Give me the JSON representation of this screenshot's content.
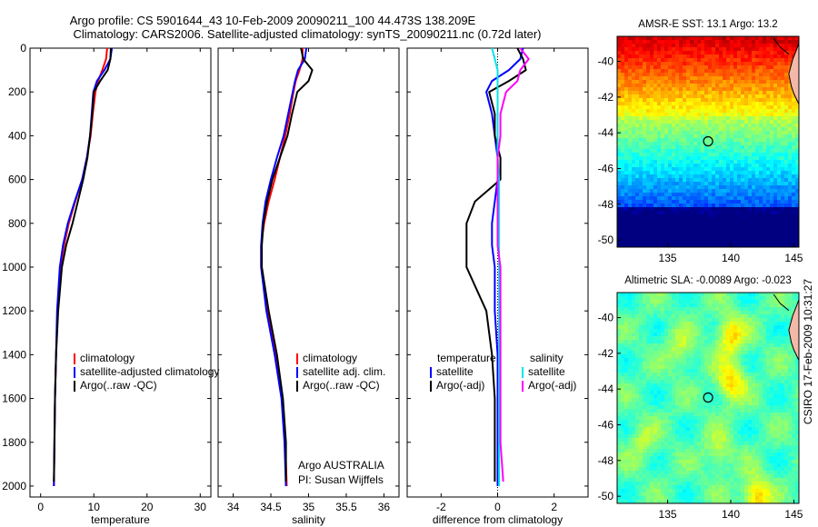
{
  "title": {
    "line1": "Argo profile: CS 5901644_43 10-Feb-2009 20090211_100 44.473S 138.209E",
    "line2": "Climatology: CARS2006. Satellite-adjusted climatology: synTS_20090211.nc (0.72d later)"
  },
  "side_label": "CSIRO 17-Feb-2009 10:31:27",
  "colors": {
    "climatology": "#ff0000",
    "satellite": "#0000ff",
    "argo": "#000000",
    "satellite_sal_diff": "#00e5ee",
    "argo_sal_diff": "#ff00ff",
    "land": "#f4b8a8",
    "frame": "#000000"
  },
  "chart_data": [
    {
      "type": "line",
      "xlabel": "temperature",
      "xlim": [
        -2,
        32
      ],
      "xticks": [
        0,
        10,
        20,
        30
      ],
      "ylim": [
        2050,
        0
      ],
      "yticks": [
        0,
        200,
        400,
        600,
        800,
        1000,
        1200,
        1400,
        1600,
        1800,
        2000
      ],
      "legend": {
        "placement": "lower-middle",
        "entries": [
          "climatology",
          "satellite-adjusted climatology",
          "Argo(..raw -QC)"
        ]
      },
      "series": [
        {
          "name": "climatology",
          "color": "#ff0000",
          "x": [
            12.5,
            12.3,
            11.6,
            10.8,
            10.3,
            9.8,
            9.4,
            8.7,
            7.8,
            6.5,
            5.3,
            4.4,
            3.7,
            3.2,
            2.9,
            2.7,
            2.6,
            2.5
          ],
          "y": [
            0,
            50,
            100,
            150,
            200,
            300,
            400,
            500,
            600,
            700,
            800,
            900,
            1000,
            1200,
            1400,
            1600,
            1800,
            2000
          ]
        },
        {
          "name": "satellite-adjusted climatology",
          "color": "#0000ff",
          "x": [
            13.4,
            13.1,
            12.0,
            10.6,
            9.9,
            9.6,
            9.3,
            8.7,
            7.8,
            6.4,
            5.1,
            4.2,
            3.6,
            3.1,
            2.9,
            2.7,
            2.6,
            2.5
          ],
          "y": [
            0,
            50,
            100,
            150,
            200,
            300,
            400,
            500,
            600,
            700,
            800,
            900,
            1000,
            1200,
            1400,
            1600,
            1800,
            2000
          ]
        },
        {
          "name": "Argo(..raw -QC)",
          "color": "#000000",
          "x": [
            13.2,
            13.1,
            12.6,
            11.2,
            10.0,
            9.7,
            9.3,
            8.8,
            8.0,
            7.0,
            6.0,
            4.8,
            4.0,
            3.3,
            2.9,
            2.7,
            2.6,
            2.5
          ],
          "y": [
            0,
            50,
            100,
            150,
            200,
            300,
            400,
            500,
            600,
            700,
            800,
            900,
            1000,
            1200,
            1400,
            1600,
            1800,
            1980
          ]
        }
      ]
    },
    {
      "type": "line",
      "xlabel": "salinity",
      "xlim": [
        33.8,
        36.2
      ],
      "xticks": [
        34,
        34.5,
        35,
        35.5,
        36
      ],
      "ylim": [
        2050,
        0
      ],
      "yticks": [
        0,
        200,
        400,
        600,
        800,
        1000,
        1200,
        1400,
        1600,
        1800,
        2000
      ],
      "annotation": [
        "Argo AUSTRALIA",
        "PI: Susan Wijffels"
      ],
      "legend": {
        "placement": "lower-middle",
        "entries": [
          "climatology",
          "satellite adj. clim.",
          "Argo(..raw -QC)"
        ]
      },
      "series": [
        {
          "name": "climatology",
          "color": "#ff0000",
          "x": [
            34.92,
            34.92,
            34.88,
            34.83,
            34.8,
            34.75,
            34.69,
            34.62,
            34.55,
            34.47,
            34.41,
            34.37,
            34.37,
            34.45,
            34.56,
            34.65,
            34.69,
            34.71
          ],
          "y": [
            0,
            50,
            100,
            150,
            200,
            300,
            400,
            500,
            600,
            700,
            800,
            900,
            1000,
            1200,
            1400,
            1600,
            1800,
            2000
          ]
        },
        {
          "name": "satellite adj. clim.",
          "color": "#0000ff",
          "x": [
            34.97,
            34.95,
            34.86,
            34.82,
            34.79,
            34.73,
            34.67,
            34.58,
            34.5,
            34.43,
            34.39,
            34.37,
            34.37,
            34.44,
            34.55,
            34.64,
            34.68,
            34.7
          ],
          "y": [
            0,
            50,
            100,
            150,
            200,
            300,
            400,
            500,
            600,
            700,
            800,
            900,
            1000,
            1200,
            1400,
            1600,
            1800,
            2000
          ]
        },
        {
          "name": "Argo(..raw -QC)",
          "color": "#000000",
          "x": [
            34.9,
            34.93,
            35.05,
            35.0,
            34.85,
            34.78,
            34.72,
            34.62,
            34.52,
            34.45,
            34.4,
            34.38,
            34.38,
            34.47,
            34.58,
            34.66,
            34.7,
            34.7
          ],
          "y": [
            0,
            50,
            100,
            150,
            200,
            300,
            400,
            500,
            600,
            700,
            800,
            900,
            1000,
            1200,
            1400,
            1600,
            1800,
            1980
          ]
        }
      ]
    },
    {
      "type": "line",
      "xlabel": "difference from climatology",
      "xlim": [
        -3.2,
        3.2
      ],
      "xticks": [
        -2,
        0,
        2
      ],
      "ylim": [
        2050,
        0
      ],
      "yticks": [
        0,
        200,
        400,
        600,
        800,
        1000,
        1200,
        1400,
        1600,
        1800,
        2000
      ],
      "legend": {
        "placement": "lower-middle",
        "temperature_header": "temperature",
        "salinity_header": "salinity",
        "entries": [
          "satellite",
          "Argo(-adj)",
          "satellite",
          "Argo(-adj)"
        ]
      },
      "series": [
        {
          "name": "satellite",
          "group": "temperature",
          "color": "#0000ff",
          "x": [
            0.9,
            0.8,
            0.4,
            -0.2,
            -0.4,
            -0.2,
            -0.1,
            0.0,
            0.0,
            -0.1,
            -0.2,
            -0.2,
            -0.1,
            -0.1,
            0.0,
            0.0,
            0.0,
            0.0
          ],
          "y": [
            0,
            50,
            100,
            150,
            200,
            300,
            400,
            500,
            600,
            700,
            800,
            900,
            1000,
            1200,
            1400,
            1600,
            1800,
            2000
          ]
        },
        {
          "name": "Argo(-adj)",
          "group": "temperature",
          "color": "#000000",
          "x": [
            0.7,
            0.9,
            1.0,
            0.4,
            -0.3,
            -0.1,
            -0.1,
            0.1,
            0.1,
            -0.8,
            -1.1,
            -1.1,
            -1.1,
            -0.4,
            -0.2,
            -0.1,
            -0.1,
            -0.1
          ],
          "y": [
            0,
            50,
            100,
            150,
            200,
            300,
            400,
            500,
            600,
            700,
            800,
            900,
            1000,
            1200,
            1400,
            1600,
            1800,
            1980
          ]
        },
        {
          "name": "satellite",
          "group": "salinity",
          "color": "#00e5ee",
          "x": [
            -0.2,
            -0.1,
            0.0,
            0.0,
            0.0,
            0.0,
            0.0,
            0.0,
            0.05,
            0.05,
            0.05,
            0.05,
            0.05,
            0.05,
            0.05,
            0.05,
            0.05,
            0.05
          ],
          "y": [
            0,
            50,
            100,
            150,
            200,
            300,
            400,
            500,
            600,
            700,
            800,
            900,
            1000,
            1200,
            1400,
            1600,
            1800,
            2000
          ]
        },
        {
          "name": "Argo(-adj)",
          "group": "salinity",
          "color": "#ff00ff",
          "x": [
            0.8,
            1.1,
            0.8,
            0.7,
            0.3,
            0.1,
            0.1,
            0.0,
            0.0,
            0.0,
            0.0,
            0.0,
            0.1,
            0.1,
            0.1,
            0.1,
            0.1,
            0.2
          ],
          "y": [
            0,
            50,
            100,
            150,
            200,
            300,
            400,
            500,
            600,
            700,
            800,
            900,
            1000,
            1200,
            1400,
            1600,
            1800,
            1980
          ]
        }
      ]
    },
    {
      "type": "heatmap",
      "title": "AMSR-E SST: 13.1 Argo: 13.2",
      "xlim": [
        131,
        145.4
      ],
      "xticks": [
        135,
        140,
        145
      ],
      "ylim": [
        -50.4,
        -38.6
      ],
      "yticks": [
        -50,
        -48,
        -46,
        -44,
        -42,
        -40
      ],
      "marker": {
        "lon": 138.209,
        "lat": -44.473
      },
      "colorscale": "jet"
    },
    {
      "type": "heatmap",
      "title": "Altimetric SLA: -0.0089 Argo: -0.023",
      "xlim": [
        131,
        145.4
      ],
      "xticks": [
        135,
        140,
        145
      ],
      "ylim": [
        -50.4,
        -38.6
      ],
      "yticks": [
        -50,
        -48,
        -46,
        -44,
        -42,
        -40
      ],
      "marker": {
        "lon": 138.209,
        "lat": -44.473
      },
      "colorscale": "jet"
    }
  ]
}
